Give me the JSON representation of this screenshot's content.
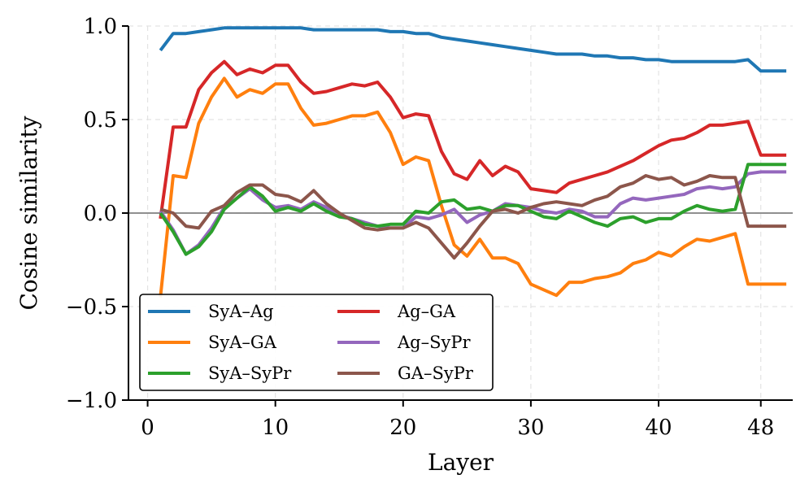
{
  "chart_data": {
    "type": "line",
    "title": "",
    "xlabel": "Layer",
    "ylabel": "Cosine similarity",
    "xlim": [
      -1.5,
      50.5
    ],
    "ylim": [
      -1.0,
      1.0
    ],
    "xticks": [
      0,
      10,
      20,
      30,
      40,
      48
    ],
    "xtick_labels": [
      "0",
      "10",
      "20",
      "30",
      "40",
      "48"
    ],
    "yticks": [
      1.0,
      0.5,
      0.0,
      -0.5,
      -1.0
    ],
    "ytick_labels": [
      "1.0",
      "0.5",
      "0.0",
      "−0.5",
      "−1.0"
    ],
    "grid": true,
    "zero_line": true,
    "legend_position": "lower-left",
    "x": [
      1,
      2,
      3,
      4,
      5,
      6,
      7,
      8,
      9,
      10,
      11,
      12,
      13,
      14,
      15,
      16,
      17,
      18,
      19,
      20,
      21,
      22,
      23,
      24,
      25,
      26,
      27,
      28,
      29,
      30,
      31,
      32,
      33,
      34,
      35,
      36,
      37,
      38,
      39,
      40,
      41,
      42,
      43,
      44,
      45,
      46,
      47,
      48,
      49,
      50
    ],
    "series": [
      {
        "name": "SyA–Ag",
        "color": "#1f77b4",
        "values": [
          0.87,
          0.96,
          0.96,
          0.97,
          0.98,
          0.99,
          0.99,
          0.99,
          0.99,
          0.99,
          0.99,
          0.99,
          0.98,
          0.98,
          0.98,
          0.98,
          0.98,
          0.98,
          0.97,
          0.97,
          0.96,
          0.96,
          0.94,
          0.93,
          0.92,
          0.91,
          0.9,
          0.89,
          0.88,
          0.87,
          0.86,
          0.85,
          0.85,
          0.85,
          0.84,
          0.84,
          0.83,
          0.83,
          0.82,
          0.82,
          0.81,
          0.81,
          0.81,
          0.81,
          0.81,
          0.81,
          0.82,
          0.76,
          0.76,
          0.76
        ]
      },
      {
        "name": "Ag–GA",
        "color": "#d62728",
        "values": [
          -0.03,
          0.46,
          0.46,
          0.66,
          0.75,
          0.81,
          0.74,
          0.77,
          0.75,
          0.79,
          0.79,
          0.7,
          0.64,
          0.65,
          0.67,
          0.69,
          0.68,
          0.7,
          0.62,
          0.51,
          0.53,
          0.52,
          0.33,
          0.21,
          0.18,
          0.28,
          0.2,
          0.25,
          0.22,
          0.13,
          0.12,
          0.11,
          0.16,
          0.18,
          0.2,
          0.22,
          0.25,
          0.28,
          0.32,
          0.36,
          0.39,
          0.4,
          0.43,
          0.47,
          0.47,
          0.48,
          0.49,
          0.31,
          0.31,
          0.31
        ]
      },
      {
        "name": "SyA–GA",
        "color": "#ff7f0e",
        "values": [
          -0.45,
          0.2,
          0.19,
          0.48,
          0.62,
          0.72,
          0.62,
          0.66,
          0.64,
          0.69,
          0.69,
          0.56,
          0.47,
          0.48,
          0.5,
          0.52,
          0.52,
          0.54,
          0.43,
          0.26,
          0.3,
          0.28,
          0.04,
          -0.17,
          -0.23,
          -0.14,
          -0.24,
          -0.24,
          -0.27,
          -0.38,
          -0.41,
          -0.44,
          -0.37,
          -0.37,
          -0.35,
          -0.34,
          -0.32,
          -0.27,
          -0.25,
          -0.21,
          -0.23,
          -0.18,
          -0.14,
          -0.15,
          -0.13,
          -0.11,
          -0.38,
          -0.38,
          -0.38,
          -0.38
        ]
      },
      {
        "name": "Ag–SyPr",
        "color": "#9467bd",
        "values": [
          0.01,
          -0.09,
          -0.22,
          -0.17,
          -0.08,
          0.03,
          0.08,
          0.13,
          0.07,
          0.03,
          0.04,
          0.02,
          0.06,
          0.03,
          -0.01,
          -0.03,
          -0.05,
          -0.07,
          -0.08,
          -0.08,
          -0.02,
          -0.03,
          -0.01,
          0.02,
          -0.05,
          -0.01,
          0.01,
          0.05,
          0.04,
          0.03,
          0.01,
          0.0,
          0.02,
          0.01,
          -0.02,
          -0.02,
          0.05,
          0.08,
          0.07,
          0.08,
          0.09,
          0.1,
          0.13,
          0.14,
          0.13,
          0.14,
          0.21,
          0.22,
          0.22,
          0.22
        ]
      },
      {
        "name": "SyA–SyPr",
        "color": "#2ca02c",
        "values": [
          0.0,
          -0.1,
          -0.22,
          -0.18,
          -0.1,
          0.02,
          0.08,
          0.14,
          0.09,
          0.01,
          0.03,
          0.01,
          0.05,
          0.01,
          -0.02,
          -0.03,
          -0.06,
          -0.07,
          -0.06,
          -0.06,
          0.01,
          0.0,
          0.06,
          0.07,
          0.02,
          0.03,
          0.01,
          0.04,
          0.04,
          0.01,
          -0.02,
          -0.03,
          0.01,
          -0.02,
          -0.05,
          -0.07,
          -0.03,
          -0.02,
          -0.05,
          -0.03,
          -0.03,
          0.01,
          0.04,
          0.02,
          0.01,
          0.02,
          0.26,
          0.26,
          0.26,
          0.26
        ]
      },
      {
        "name": "GA–SyPr",
        "color": "#8c564b",
        "values": [
          0.02,
          0.0,
          -0.07,
          -0.08,
          0.01,
          0.04,
          0.11,
          0.15,
          0.15,
          0.1,
          0.09,
          0.06,
          0.12,
          0.05,
          0.0,
          -0.04,
          -0.08,
          -0.09,
          -0.08,
          -0.08,
          -0.05,
          -0.08,
          -0.16,
          -0.24,
          -0.16,
          -0.07,
          0.01,
          0.02,
          0.0,
          0.03,
          0.05,
          0.06,
          0.05,
          0.04,
          0.07,
          0.09,
          0.14,
          0.16,
          0.2,
          0.18,
          0.19,
          0.15,
          0.17,
          0.2,
          0.19,
          0.19,
          -0.07,
          -0.07,
          -0.07,
          -0.07
        ]
      }
    ],
    "legend": [
      {
        "name": "SyA–Ag",
        "color": "#1f77b4"
      },
      {
        "name": "SyA–GA",
        "color": "#ff7f0e"
      },
      {
        "name": "SyA–SyPr",
        "color": "#2ca02c"
      },
      {
        "name": "Ag–GA",
        "color": "#d62728"
      },
      {
        "name": "Ag–SyPr",
        "color": "#9467bd"
      },
      {
        "name": "GA–SyPr",
        "color": "#8c564b"
      }
    ]
  }
}
